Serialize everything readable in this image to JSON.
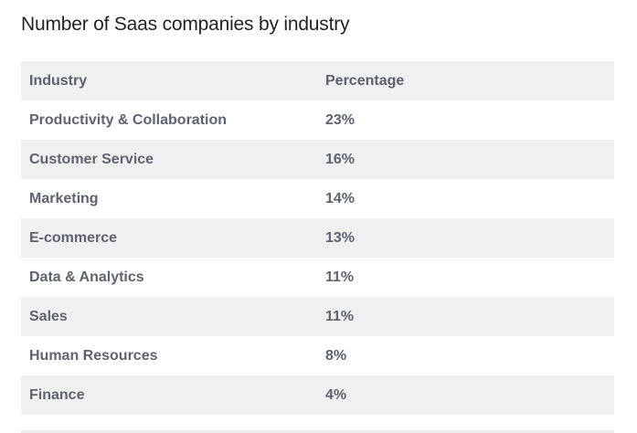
{
  "title": "Number of Saas companies by industry",
  "table": {
    "headers": {
      "industry": "Industry",
      "percentage": "Percentage"
    },
    "rows": [
      {
        "industry": "Productivity & Collaboration",
        "percentage": "23%"
      },
      {
        "industry": "Customer Service",
        "percentage": "16%"
      },
      {
        "industry": "Marketing",
        "percentage": "14%"
      },
      {
        "industry": "E-commerce",
        "percentage": "13%"
      },
      {
        "industry": "Data & Analytics",
        "percentage": "11%"
      },
      {
        "industry": "Sales",
        "percentage": "11%"
      },
      {
        "industry": "Human Resources",
        "percentage": "8%"
      },
      {
        "industry": "Finance",
        "percentage": "4%"
      }
    ]
  },
  "colors": {
    "stripe": "#f0f0f0",
    "text": "#5f6270",
    "title": "#1f2228"
  }
}
